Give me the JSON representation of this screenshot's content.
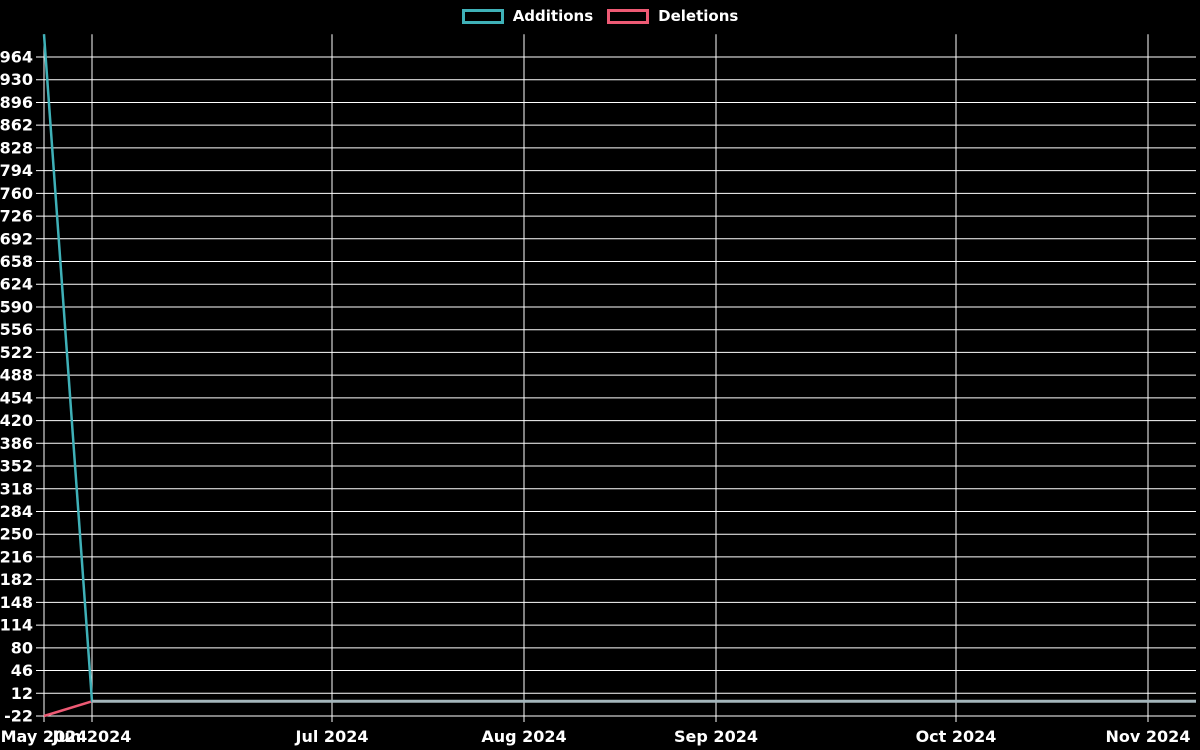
{
  "page": {
    "background_color": "#000000",
    "text_color": "#ffffff",
    "grid_color": "#ffffff"
  },
  "chart_data": {
    "type": "line",
    "title": "",
    "xlabel": "",
    "ylabel": "",
    "grid": true,
    "legend_position": "top-center",
    "x_axis": {
      "unit": "weekly",
      "num_points": 25,
      "tick_labels": [
        "May 2024",
        "Jun 2024",
        "Jul 2024",
        "Aug 2024",
        "Sep 2024",
        "Oct 2024",
        "Nov 2024"
      ],
      "tick_point_indices": [
        0,
        1,
        6,
        10,
        14,
        19,
        23
      ]
    },
    "y_axis": {
      "min": -22,
      "max": 998,
      "tick_step": 34,
      "tick_labels": [
        964,
        930,
        896,
        862,
        828,
        794,
        760,
        726,
        692,
        658,
        624,
        590,
        556,
        522,
        488,
        454,
        420,
        386,
        352,
        318,
        284,
        250,
        216,
        182,
        148,
        114,
        80,
        46,
        12,
        -22
      ]
    },
    "series": [
      {
        "name": "Additions",
        "color": "#3fb1b8",
        "values": [
          998,
          0,
          0,
          0,
          0,
          0,
          0,
          0,
          0,
          0,
          0,
          0,
          0,
          0,
          0,
          0,
          0,
          0,
          0,
          0,
          0,
          0,
          0,
          0,
          0
        ]
      },
      {
        "name": "Deletions",
        "color": "#ee5a74",
        "values": [
          -22,
          0,
          0,
          0,
          0,
          0,
          0,
          0,
          0,
          0,
          0,
          0,
          0,
          0,
          0,
          0,
          0,
          0,
          0,
          0,
          0,
          0,
          0,
          0,
          0
        ]
      }
    ],
    "overlap_line_color": "#a4b6bb"
  }
}
